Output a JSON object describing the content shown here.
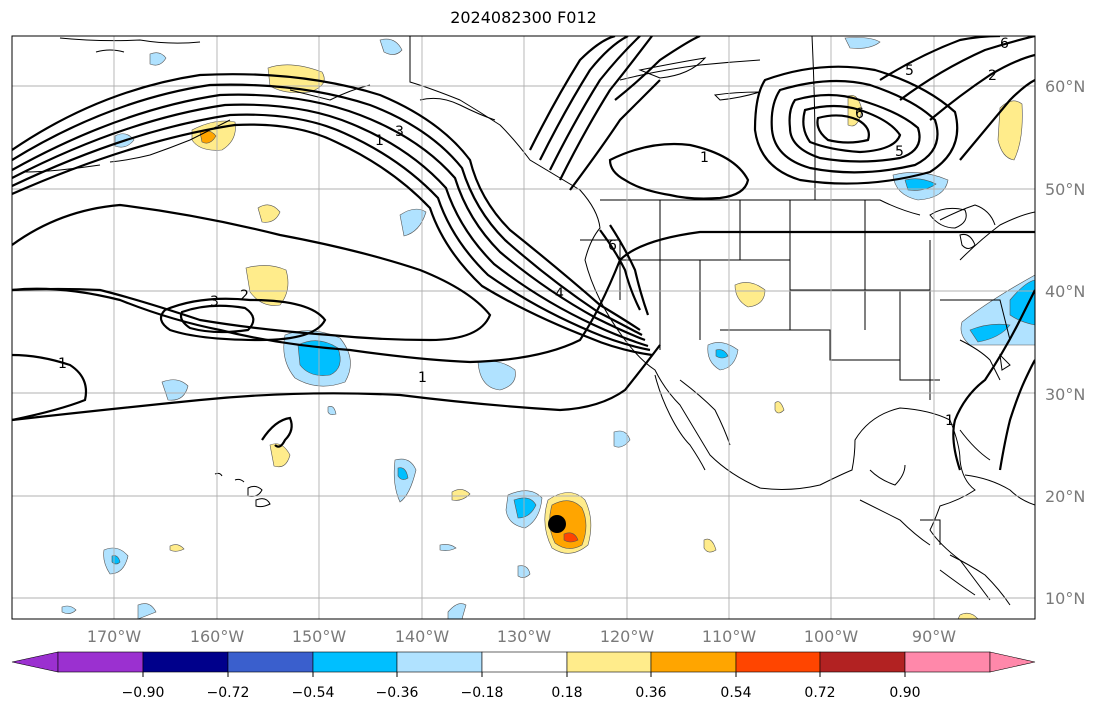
{
  "title": "2024082300 F012",
  "lat_labels": [
    "60°N",
    "50°N",
    "40°N",
    "30°N",
    "20°N",
    "10°N"
  ],
  "lon_labels": [
    "170°W",
    "160°W",
    "150°W",
    "140°W",
    "130°W",
    "120°W",
    "110°W",
    "100°W",
    "90°W"
  ],
  "colorbar": {
    "ticks": [
      "−0.90",
      "−0.72",
      "−0.54",
      "−0.36",
      "−0.18",
      "0.18",
      "0.36",
      "0.54",
      "0.72",
      "0.90"
    ],
    "colors": [
      "#9b30d0",
      "#00008b",
      "#3a5fcd",
      "#00bfff",
      "#b0e2ff",
      "#ffffff",
      "#ffec8b",
      "#ffa500",
      "#ff4500",
      "#b22222",
      "#ff88aa"
    ]
  },
  "contour_labels": [
    "1",
    "2",
    "3",
    "4",
    "5",
    "6"
  ],
  "colors": {
    "contour": "#000000",
    "coast": "#000000",
    "grid": "#b0b0b0",
    "storm_marker": "#000000"
  }
}
